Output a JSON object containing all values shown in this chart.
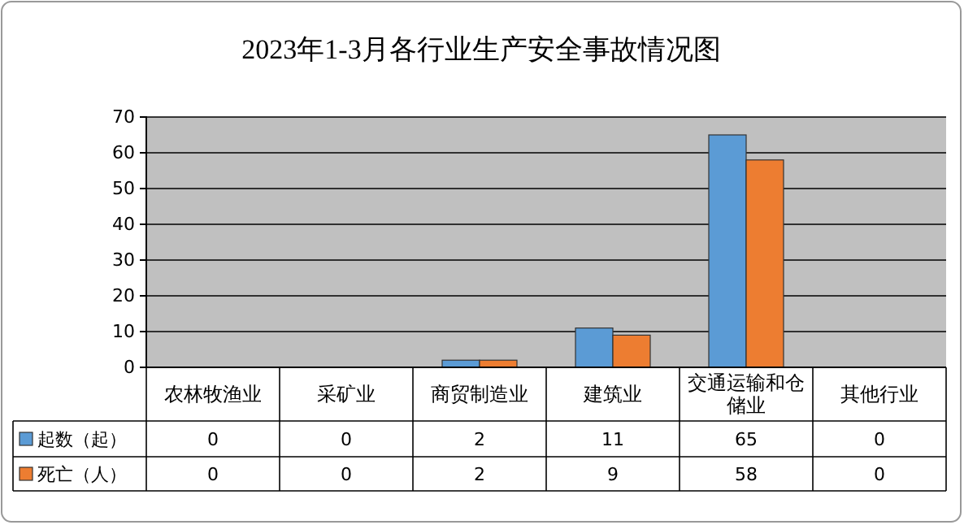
{
  "chart_data": {
    "type": "bar",
    "title": "2023年1-3月各行业生产安全事故情况图",
    "categories": [
      "农林牧渔业",
      "采矿业",
      "商贸制造业",
      "建筑业",
      "交通运输和仓储业",
      "其他行业"
    ],
    "series": [
      {
        "name": "起数（起）",
        "color": "#5b9bd5",
        "values": [
          0,
          0,
          2,
          11,
          65,
          0
        ]
      },
      {
        "name": "死亡（人）",
        "color": "#ed7d31",
        "values": [
          0,
          0,
          2,
          9,
          58,
          0
        ]
      }
    ],
    "ylim": [
      0,
      70
    ],
    "yticks": [
      0,
      10,
      20,
      30,
      40,
      50,
      60,
      70
    ],
    "grid": "y",
    "legend": "bottom",
    "data_labels": true
  }
}
